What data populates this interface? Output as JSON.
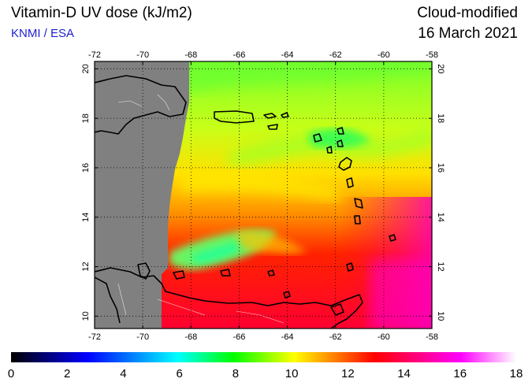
{
  "header": {
    "title": "Vitamin-D UV dose (kJ/m2)",
    "source": "KNMI / ESA",
    "product": "Cloud-modified",
    "date": "16 March 2021"
  },
  "map": {
    "lon_range": [
      -72,
      -58
    ],
    "lat_range": [
      9.5,
      20.3
    ],
    "lon_ticks": [
      "-72",
      "-70",
      "-68",
      "-66",
      "-64",
      "-62",
      "-60",
      "-58"
    ],
    "lat_ticks": [
      "10",
      "12",
      "14",
      "16",
      "18",
      "20"
    ],
    "no_data_color": "#808080"
  },
  "colorbar": {
    "range": [
      0,
      18
    ],
    "tick_labels": [
      "0",
      "2",
      "4",
      "6",
      "8",
      "10",
      "12",
      "14",
      "16",
      "18"
    ],
    "colors": [
      "#000000",
      "#0000ff",
      "#00ffff",
      "#00ff00",
      "#ffff00",
      "#ff0000",
      "#ff00ff",
      "#ffffff"
    ]
  }
}
